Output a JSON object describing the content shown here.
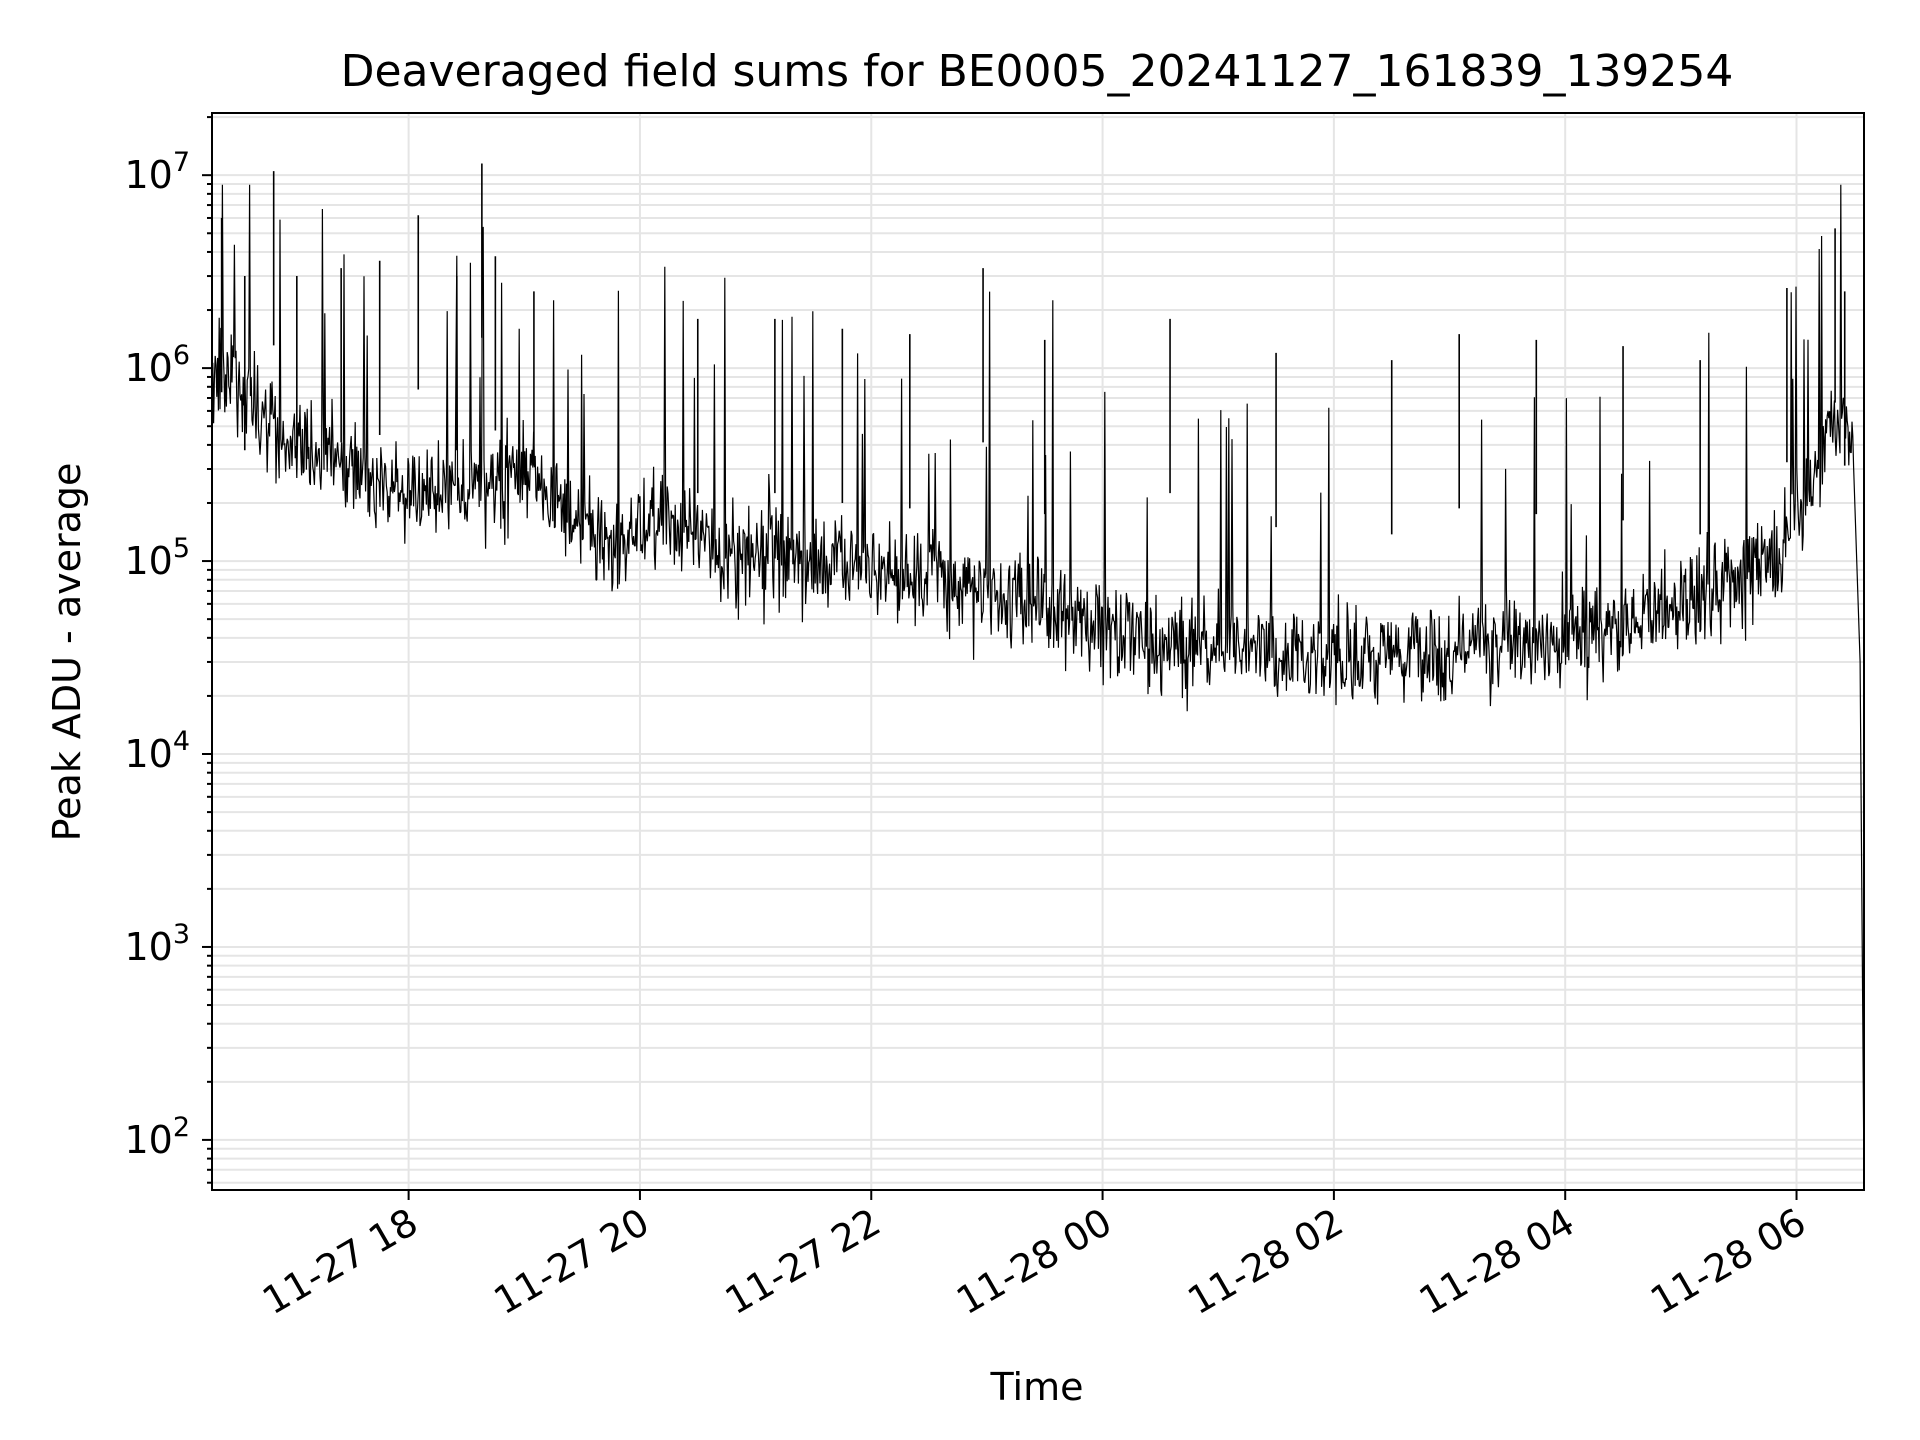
{
  "chart_data": {
    "type": "line",
    "title": "Deaveraged field sums for BE0005_20241127_161839_139254",
    "xlabel": "Time",
    "ylabel": "Peak ADU - average",
    "xscale": "time",
    "yscale": "log",
    "xlim": [
      "2024-11-27 16:18",
      "2024-11-28 06:35"
    ],
    "ylim": [
      55,
      21000000
    ],
    "x_ticks": [
      {
        "value": "2024-11-27 18:00",
        "label": "11-27 18"
      },
      {
        "value": "2024-11-27 20:00",
        "label": "11-27 20"
      },
      {
        "value": "2024-11-27 22:00",
        "label": "11-27 22"
      },
      {
        "value": "2024-11-28 00:00",
        "label": "11-28 00"
      },
      {
        "value": "2024-11-28 02:00",
        "label": "11-28 02"
      },
      {
        "value": "2024-11-28 04:00",
        "label": "11-28 04"
      },
      {
        "value": "2024-11-28 06:00",
        "label": "11-28 06"
      }
    ],
    "y_ticks": [
      {
        "value": 100,
        "base": "10",
        "exp": "2"
      },
      {
        "value": 1000,
        "base": "10",
        "exp": "3"
      },
      {
        "value": 10000,
        "base": "10",
        "exp": "4"
      },
      {
        "value": 100000,
        "base": "10",
        "exp": "5"
      },
      {
        "value": 1000000,
        "base": "10",
        "exp": "6"
      },
      {
        "value": 10000000,
        "base": "10",
        "exp": "7"
      }
    ],
    "grid": true,
    "line_color": "#000000",
    "grid_color": "#e5e5e5",
    "series": [
      {
        "x": [
          "2024-11-27 16:18",
          "2024-11-27 16:30",
          "2024-11-27 16:45",
          "2024-11-27 17:00",
          "2024-11-27 17:15",
          "2024-11-27 17:30",
          "2024-11-27 17:45",
          "2024-11-27 18:00",
          "2024-11-27 18:15",
          "2024-11-27 18:30",
          "2024-11-27 18:45",
          "2024-11-27 19:00",
          "2024-11-27 19:15",
          "2024-11-27 19:30",
          "2024-11-27 19:45",
          "2024-11-27 20:00",
          "2024-11-27 20:15",
          "2024-11-27 20:30",
          "2024-11-27 20:45",
          "2024-11-27 21:00",
          "2024-11-27 21:30",
          "2024-11-27 22:00",
          "2024-11-27 22:30",
          "2024-11-27 23:00",
          "2024-11-27 23:30",
          "2024-11-28 00:00",
          "2024-11-28 00:30",
          "2024-11-28 01:00",
          "2024-11-28 01:30",
          "2024-11-28 02:00",
          "2024-11-28 02:30",
          "2024-11-28 03:00",
          "2024-11-28 03:30",
          "2024-11-28 04:00",
          "2024-11-28 04:30",
          "2024-11-28 05:00",
          "2024-11-28 05:30",
          "2024-11-28 05:45",
          "2024-11-28 06:00",
          "2024-11-28 06:10",
          "2024-11-28 06:20",
          "2024-11-28 06:30",
          "2024-11-28 06:33",
          "2024-11-28 06:35"
        ],
        "y": [
          1000000,
          800000,
          600000,
          400000,
          350000,
          300000,
          250000,
          250000,
          230000,
          230000,
          250000,
          300000,
          200000,
          150000,
          100000,
          170000,
          160000,
          130000,
          100000,
          120000,
          100000,
          85000,
          80000,
          65000,
          55000,
          45000,
          40000,
          38000,
          35000,
          33000,
          32000,
          33000,
          35000,
          38000,
          45000,
          60000,
          80000,
          100000,
          150000,
          300000,
          600000,
          400000,
          30000,
          60
        ]
      }
    ],
    "spikes": [
      {
        "x": "2024-11-27 16:23",
        "y": 6000000
      },
      {
        "x": "2024-11-27 16:35",
        "y": 3000000
      },
      {
        "x": "2024-11-27 16:50",
        "y": 10500000
      },
      {
        "x": "2024-11-27 17:02",
        "y": 3000000
      },
      {
        "x": "2024-11-27 17:25",
        "y": 3300000
      },
      {
        "x": "2024-11-27 17:45",
        "y": 3600000
      },
      {
        "x": "2024-11-27 18:05",
        "y": 6200000
      },
      {
        "x": "2024-11-27 18:25",
        "y": 3000000
      },
      {
        "x": "2024-11-27 18:38",
        "y": 11500000
      },
      {
        "x": "2024-11-27 18:45",
        "y": 3800000
      },
      {
        "x": "2024-11-27 19:05",
        "y": 2500000
      },
      {
        "x": "2024-11-27 20:30",
        "y": 1800000
      },
      {
        "x": "2024-11-27 21:10",
        "y": 1800000
      },
      {
        "x": "2024-11-27 21:45",
        "y": 1600000
      },
      {
        "x": "2024-11-27 22:20",
        "y": 1500000
      },
      {
        "x": "2024-11-27 22:58",
        "y": 3300000
      },
      {
        "x": "2024-11-27 23:30",
        "y": 1400000
      },
      {
        "x": "2024-11-28 00:35",
        "y": 1800000
      },
      {
        "x": "2024-11-28 01:30",
        "y": 1200000
      },
      {
        "x": "2024-11-28 02:30",
        "y": 1100000
      },
      {
        "x": "2024-11-28 03:05",
        "y": 1500000
      },
      {
        "x": "2024-11-28 03:45",
        "y": 1400000
      },
      {
        "x": "2024-11-28 04:30",
        "y": 1300000
      },
      {
        "x": "2024-11-28 05:10",
        "y": 1100000
      },
      {
        "x": "2024-11-28 05:55",
        "y": 2600000
      },
      {
        "x": "2024-11-28 06:20",
        "y": 5300000
      },
      {
        "x": "2024-11-28 06:25",
        "y": 2500000
      }
    ]
  }
}
